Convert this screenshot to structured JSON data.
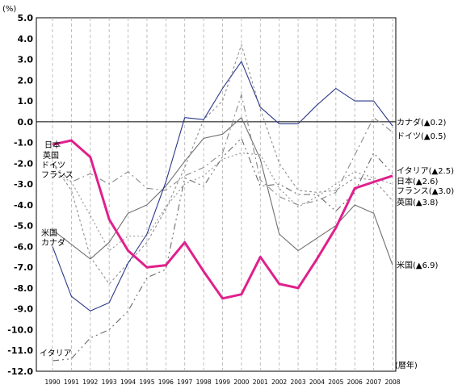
{
  "chart_data": {
    "type": "line",
    "y_unit_label": "(%)",
    "x_unit_label": "(暦年)",
    "ylim": [
      -12,
      5
    ],
    "y_ticks": [
      "5.0",
      "4.0",
      "3.0",
      "2.0",
      "1.0",
      "0.0",
      "-1.0",
      "-2.0",
      "-3.0",
      "-4.0",
      "-5.0",
      "-6.0",
      "-7.0",
      "-8.0",
      "-9.0",
      "-10.0",
      "-11.0",
      "-12.0"
    ],
    "x": [
      "1990",
      "1991",
      "1992",
      "1993",
      "1994",
      "1995",
      "1996",
      "1997",
      "1998",
      "1999",
      "2000",
      "2001",
      "2002",
      "2003",
      "2004",
      "2005",
      "2006",
      "2007",
      "2008"
    ],
    "grid": "vertical dashed, horizontal line at 0",
    "series": [
      {
        "key": "japan",
        "color": "#e0208c",
        "values": [
          -1.1,
          -0.9,
          -1.7,
          -4.7,
          -6.2,
          -7.0,
          -6.9,
          -5.8,
          -7.2,
          -8.5,
          -8.3,
          -6.5,
          -7.8,
          -8.0,
          -6.6,
          -5.1,
          -3.2,
          -2.9,
          -2.6
        ]
      },
      {
        "key": "canada",
        "color": "#2a3a8a",
        "values": [
          -6.0,
          -8.4,
          -9.1,
          -8.7,
          -6.8,
          -5.4,
          -2.9,
          0.2,
          0.1,
          1.6,
          2.9,
          0.7,
          -0.1,
          -0.1,
          0.8,
          1.6,
          1.0,
          1.0,
          -0.2
        ]
      },
      {
        "key": "us",
        "color": "#707070",
        "values": [
          -5.2,
          -5.9,
          -6.6,
          -5.8,
          -4.4,
          -4.0,
          -3.1,
          -1.9,
          -0.8,
          -0.6,
          0.2,
          -1.8,
          -5.4,
          -6.2,
          -5.6,
          -5.0,
          -4.0,
          -4.4,
          -6.9
        ]
      },
      {
        "key": "germany",
        "color": "#8a8a8a",
        "values": [
          -2.0,
          -2.9,
          -2.5,
          -3.0,
          -2.4,
          -3.2,
          -3.3,
          -2.6,
          -2.2,
          -1.5,
          1.3,
          -2.8,
          -3.6,
          -4.0,
          -3.8,
          -3.4,
          -1.6,
          0.2,
          -0.5
        ]
      },
      {
        "key": "france",
        "color": "#909090",
        "values": [
          -2.4,
          -2.9,
          -4.5,
          -6.2,
          -5.5,
          -5.5,
          -4.1,
          -3.0,
          -2.6,
          -1.8,
          -1.5,
          -1.6,
          -3.2,
          -4.1,
          -3.6,
          -3.0,
          -2.4,
          -2.7,
          -3.0
        ]
      },
      {
        "key": "uk",
        "color": "#909090",
        "values": [
          -2.0,
          -3.3,
          -6.5,
          -7.8,
          -6.8,
          -5.8,
          -4.2,
          -2.2,
          0.1,
          1.0,
          3.7,
          0.6,
          -2.0,
          -3.3,
          -3.4,
          -3.3,
          -2.7,
          -2.8,
          -3.8
        ]
      },
      {
        "key": "italy",
        "color": "#6a6a6a",
        "values": [
          -11.5,
          -11.4,
          -10.4,
          -10.0,
          -9.1,
          -7.5,
          -7.1,
          -2.7,
          -3.1,
          -1.7,
          -0.8,
          -3.1,
          -3.0,
          -3.5,
          -3.5,
          -4.3,
          -3.4,
          -1.5,
          -2.5
        ]
      }
    ]
  },
  "labels": {
    "left_japan": "日本",
    "left_uk": "英国",
    "left_germany": "ドイツ",
    "left_france": "フランス",
    "left_us": "米国",
    "left_canada": "カナダ",
    "left_italy": "イタリア",
    "right_canada": "カナダ(▲0.2)",
    "right_germany": "ドイツ(▲0.5)",
    "right_italy": "イタリア(▲2.5)",
    "right_japan": "日本(▲2.6)",
    "right_france": "フランス(▲3.0)",
    "right_uk": "英国(▲3.8)",
    "right_us": "米国(▲6.9)"
  }
}
